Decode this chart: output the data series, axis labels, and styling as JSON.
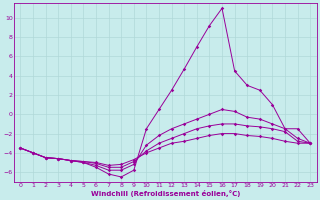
{
  "xlabel": "Windchill (Refroidissement éolien,°C)",
  "bg_color": "#c8ecec",
  "grid_color": "#b0d8d8",
  "line_color": "#990099",
  "xlim": [
    -0.5,
    23.5
  ],
  "ylim": [
    -7,
    11.5
  ],
  "yticks": [
    -6,
    -4,
    -2,
    0,
    2,
    4,
    6,
    8,
    10
  ],
  "xticks": [
    0,
    1,
    2,
    3,
    4,
    5,
    6,
    7,
    8,
    9,
    10,
    11,
    12,
    13,
    14,
    15,
    16,
    17,
    18,
    19,
    20,
    21,
    22,
    23
  ],
  "lines": [
    {
      "x": [
        0,
        1,
        2,
        3,
        4,
        5,
        6,
        7,
        8,
        9,
        10,
        11,
        12,
        13,
        14,
        15,
        16,
        17,
        18,
        19,
        20,
        21,
        22,
        23
      ],
      "y": [
        -3.5,
        -4.0,
        -4.5,
        -4.6,
        -4.8,
        -5.0,
        -5.5,
        -6.2,
        -6.5,
        -5.8,
        -1.5,
        0.5,
        2.5,
        4.7,
        7.0,
        9.2,
        11.0,
        4.5,
        3.0,
        2.5,
        1.0,
        -1.5,
        -1.5,
        -3.0
      ]
    },
    {
      "x": [
        0,
        1,
        2,
        3,
        4,
        5,
        6,
        7,
        8,
        9,
        10,
        11,
        12,
        13,
        14,
        15,
        16,
        17,
        18,
        19,
        20,
        21,
        22,
        23
      ],
      "y": [
        -3.5,
        -4.0,
        -4.5,
        -4.6,
        -4.8,
        -5.0,
        -5.3,
        -5.8,
        -5.8,
        -5.2,
        -3.2,
        -2.2,
        -1.5,
        -1.0,
        -0.5,
        -0.0,
        0.5,
        0.3,
        -0.3,
        -0.5,
        -1.0,
        -1.5,
        -2.5,
        -3.0
      ]
    },
    {
      "x": [
        0,
        1,
        2,
        3,
        4,
        5,
        6,
        7,
        8,
        9,
        10,
        11,
        12,
        13,
        14,
        15,
        16,
        17,
        18,
        19,
        20,
        21,
        22,
        23
      ],
      "y": [
        -3.5,
        -4.0,
        -4.5,
        -4.6,
        -4.8,
        -4.9,
        -5.1,
        -5.5,
        -5.5,
        -4.9,
        -3.8,
        -3.0,
        -2.5,
        -2.0,
        -1.5,
        -1.2,
        -1.0,
        -1.0,
        -1.2,
        -1.3,
        -1.5,
        -1.8,
        -2.8,
        -3.0
      ]
    },
    {
      "x": [
        0,
        1,
        2,
        3,
        4,
        5,
        6,
        7,
        8,
        9,
        10,
        11,
        12,
        13,
        14,
        15,
        16,
        17,
        18,
        19,
        20,
        21,
        22,
        23
      ],
      "y": [
        -3.5,
        -4.0,
        -4.5,
        -4.6,
        -4.8,
        -4.9,
        -5.0,
        -5.3,
        -5.2,
        -4.7,
        -4.0,
        -3.5,
        -3.0,
        -2.8,
        -2.5,
        -2.2,
        -2.0,
        -2.0,
        -2.2,
        -2.3,
        -2.5,
        -2.8,
        -3.0,
        -3.0
      ]
    }
  ]
}
